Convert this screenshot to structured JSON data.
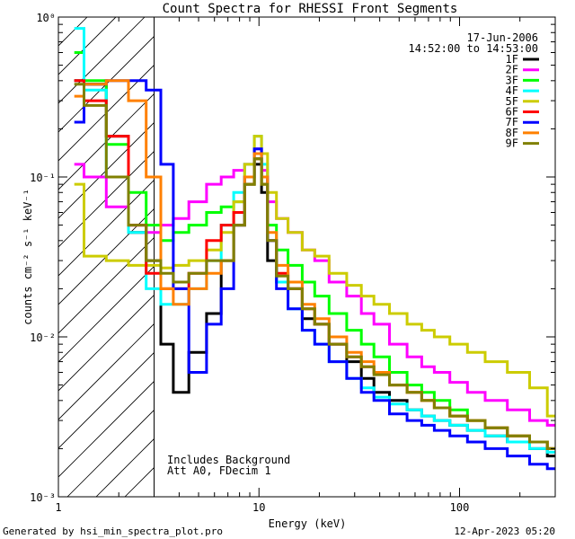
{
  "chart_data": {
    "type": "line",
    "title": "Count Spectra for RHESSI Front Segments",
    "xlabel": "Energy (keV)",
    "ylabel": "counts cm⁻² s⁻¹ keV⁻¹",
    "xscale": "log",
    "yscale": "log",
    "xlim": [
      1.0,
      300.0
    ],
    "ylim": [
      0.001,
      1.0
    ],
    "x_ticks": [
      {
        "value": 1,
        "label": "1"
      },
      {
        "value": 10,
        "label": "10"
      },
      {
        "value": 100,
        "label": "100"
      }
    ],
    "y_ticks": [
      {
        "value": 1,
        "label": "10⁰"
      },
      {
        "value": 0.1,
        "label": "10⁻¹"
      },
      {
        "value": 0.01,
        "label": "10⁻²"
      },
      {
        "value": 0.001,
        "label": "10⁻³"
      }
    ],
    "date": "17-Jun-2006",
    "time_range": "14:52:00 to 14:53:00",
    "notes": [
      "Includes Background",
      "Att A0, FDecim 1"
    ],
    "hatched_region_max_keV": 3.0,
    "series": [
      {
        "name": "1F",
        "color": "#000000",
        "x": [
          1.2,
          1.5,
          2.0,
          2.5,
          3.0,
          3.5,
          4.0,
          5.0,
          6.0,
          7.0,
          8.0,
          9.0,
          10.0,
          10.6,
          11.5,
          13,
          15,
          18,
          20,
          25,
          30,
          35,
          40,
          50,
          60,
          70,
          80,
          100,
          120,
          150,
          200,
          250,
          300
        ],
        "y": [
          0.4,
          0.38,
          0.18,
          0.045,
          0.03,
          0.009,
          0.0045,
          0.008,
          0.014,
          0.03,
          0.05,
          0.09,
          0.12,
          0.08,
          0.03,
          0.022,
          0.02,
          0.013,
          0.012,
          0.009,
          0.007,
          0.0055,
          0.0045,
          0.004,
          0.0035,
          0.0032,
          0.003,
          0.0028,
          0.0026,
          0.0024,
          0.0022,
          0.002,
          0.0018
        ]
      },
      {
        "name": "2F",
        "color": "#ff00ff",
        "x": [
          1.2,
          1.5,
          2.0,
          2.5,
          3.0,
          3.5,
          4.0,
          5.0,
          6.0,
          7.0,
          8.0,
          9.0,
          10.0,
          10.6,
          11.5,
          13,
          15,
          18,
          20,
          25,
          30,
          35,
          40,
          50,
          60,
          70,
          80,
          100,
          120,
          150,
          200,
          250,
          300
        ],
        "y": [
          0.12,
          0.1,
          0.065,
          0.05,
          0.045,
          0.05,
          0.055,
          0.07,
          0.09,
          0.1,
          0.11,
          0.12,
          0.15,
          0.11,
          0.07,
          0.055,
          0.045,
          0.035,
          0.03,
          0.022,
          0.018,
          0.014,
          0.012,
          0.009,
          0.0075,
          0.0065,
          0.006,
          0.0052,
          0.0045,
          0.004,
          0.0035,
          0.003,
          0.0028
        ]
      },
      {
        "name": "3F",
        "color": "#00ff00",
        "x": [
          1.2,
          1.5,
          2.0,
          2.5,
          3.0,
          3.5,
          4.0,
          5.0,
          6.0,
          7.0,
          8.0,
          9.0,
          10.0,
          10.6,
          11.5,
          13,
          15,
          18,
          20,
          25,
          30,
          35,
          40,
          50,
          60,
          70,
          80,
          100,
          120,
          150,
          200,
          250,
          300
        ],
        "y": [
          0.6,
          0.4,
          0.16,
          0.08,
          0.05,
          0.04,
          0.045,
          0.05,
          0.06,
          0.065,
          0.07,
          0.09,
          0.13,
          0.09,
          0.05,
          0.035,
          0.028,
          0.022,
          0.018,
          0.014,
          0.011,
          0.009,
          0.0075,
          0.006,
          0.005,
          0.0045,
          0.004,
          0.0035,
          0.003,
          0.0027,
          0.0024,
          0.0022,
          0.002
        ]
      },
      {
        "name": "4F",
        "color": "#00ffff",
        "x": [
          1.2,
          1.5,
          2.0,
          2.5,
          3.0,
          3.5,
          4.0,
          5.0,
          6.0,
          7.0,
          8.0,
          9.0,
          10.0,
          10.6,
          11.5,
          13,
          15,
          18,
          20,
          25,
          30,
          35,
          40,
          50,
          60,
          70,
          80,
          100,
          120,
          150,
          200,
          250,
          300
        ],
        "y": [
          0.85,
          0.35,
          0.1,
          0.045,
          0.02,
          0.016,
          0.016,
          0.02,
          0.03,
          0.05,
          0.08,
          0.12,
          0.18,
          0.12,
          0.04,
          0.022,
          0.015,
          0.011,
          0.009,
          0.007,
          0.0055,
          0.0048,
          0.0042,
          0.0038,
          0.0035,
          0.0032,
          0.003,
          0.0028,
          0.0026,
          0.0024,
          0.0022,
          0.002,
          0.0019
        ]
      },
      {
        "name": "5F",
        "color": "#cccc00",
        "x": [
          1.2,
          1.5,
          2.0,
          2.5,
          3.0,
          3.5,
          4.0,
          5.0,
          6.0,
          7.0,
          8.0,
          9.0,
          10.0,
          10.6,
          11.5,
          13,
          15,
          18,
          20,
          25,
          30,
          35,
          40,
          50,
          60,
          70,
          80,
          100,
          120,
          150,
          200,
          250,
          300
        ],
        "y": [
          0.09,
          0.032,
          0.03,
          0.028,
          0.028,
          0.027,
          0.028,
          0.03,
          0.035,
          0.045,
          0.07,
          0.12,
          0.18,
          0.14,
          0.08,
          0.055,
          0.045,
          0.035,
          0.032,
          0.025,
          0.021,
          0.018,
          0.016,
          0.014,
          0.012,
          0.011,
          0.01,
          0.009,
          0.008,
          0.007,
          0.006,
          0.0048,
          0.0032
        ]
      },
      {
        "name": "6F",
        "color": "#ff0000",
        "x": [
          1.2,
          1.5,
          2.0,
          2.5,
          3.0,
          3.5,
          4.0,
          5.0,
          6.0,
          7.0,
          8.0,
          9.0,
          10.0,
          10.6,
          11.5,
          13,
          15,
          18,
          20,
          25,
          30,
          35,
          40,
          50,
          60,
          70,
          80,
          100,
          120,
          150,
          200,
          250,
          300
        ],
        "y": [
          0.4,
          0.3,
          0.18,
          0.05,
          0.025,
          0.02,
          0.02,
          0.025,
          0.04,
          0.05,
          0.06,
          0.09,
          0.13,
          0.09,
          0.04,
          0.025,
          0.02,
          0.015,
          0.012,
          0.009,
          0.0075,
          0.0065,
          0.006,
          0.005,
          0.0045,
          0.004,
          0.0036,
          0.0032,
          0.003,
          0.0027,
          0.0024,
          0.0022,
          0.002
        ]
      },
      {
        "name": "7F",
        "color": "#0000ff",
        "x": [
          1.2,
          1.5,
          2.0,
          2.5,
          3.0,
          3.5,
          4.0,
          5.0,
          6.0,
          7.0,
          8.0,
          9.0,
          10.0,
          10.6,
          11.5,
          13,
          15,
          18,
          20,
          25,
          30,
          35,
          40,
          50,
          60,
          70,
          80,
          100,
          120,
          150,
          200,
          250,
          300
        ],
        "y": [
          0.22,
          0.38,
          0.4,
          0.4,
          0.35,
          0.12,
          0.02,
          0.006,
          0.012,
          0.02,
          0.05,
          0.1,
          0.15,
          0.1,
          0.04,
          0.02,
          0.015,
          0.011,
          0.009,
          0.007,
          0.0055,
          0.0045,
          0.004,
          0.0033,
          0.003,
          0.0028,
          0.0026,
          0.0024,
          0.0022,
          0.002,
          0.0018,
          0.0016,
          0.0015
        ]
      },
      {
        "name": "8F",
        "color": "#ff8000",
        "x": [
          1.2,
          1.5,
          2.0,
          2.5,
          3.0,
          3.5,
          4.0,
          5.0,
          6.0,
          7.0,
          8.0,
          9.0,
          10.0,
          10.6,
          11.5,
          13,
          15,
          18,
          20,
          25,
          30,
          35,
          40,
          50,
          60,
          70,
          80,
          100,
          120,
          150,
          200,
          250,
          300
        ],
        "y": [
          0.32,
          0.38,
          0.4,
          0.3,
          0.1,
          0.02,
          0.016,
          0.02,
          0.025,
          0.03,
          0.05,
          0.1,
          0.14,
          0.1,
          0.045,
          0.028,
          0.022,
          0.016,
          0.013,
          0.01,
          0.008,
          0.007,
          0.006,
          0.005,
          0.0045,
          0.004,
          0.0036,
          0.0032,
          0.003,
          0.0027,
          0.0024,
          0.0022,
          0.002
        ]
      },
      {
        "name": "9F",
        "color": "#808000",
        "x": [
          1.2,
          1.5,
          2.0,
          2.5,
          3.0,
          3.5,
          4.0,
          5.0,
          6.0,
          7.0,
          8.0,
          9.0,
          10.0,
          10.6,
          11.5,
          13,
          15,
          18,
          20,
          25,
          30,
          35,
          40,
          50,
          60,
          70,
          80,
          100,
          120,
          150,
          200,
          250,
          300
        ],
        "y": [
          0.38,
          0.28,
          0.1,
          0.05,
          0.03,
          0.025,
          0.022,
          0.025,
          0.03,
          0.03,
          0.05,
          0.09,
          0.13,
          0.09,
          0.04,
          0.024,
          0.02,
          0.015,
          0.012,
          0.009,
          0.0075,
          0.0065,
          0.0058,
          0.005,
          0.0045,
          0.004,
          0.0036,
          0.0032,
          0.003,
          0.0027,
          0.0024,
          0.0022,
          0.002
        ]
      }
    ]
  },
  "footer": {
    "generated_by": "Generated by hsi_min_spectra_plot.pro",
    "timestamp": "12-Apr-2023 05:20"
  }
}
